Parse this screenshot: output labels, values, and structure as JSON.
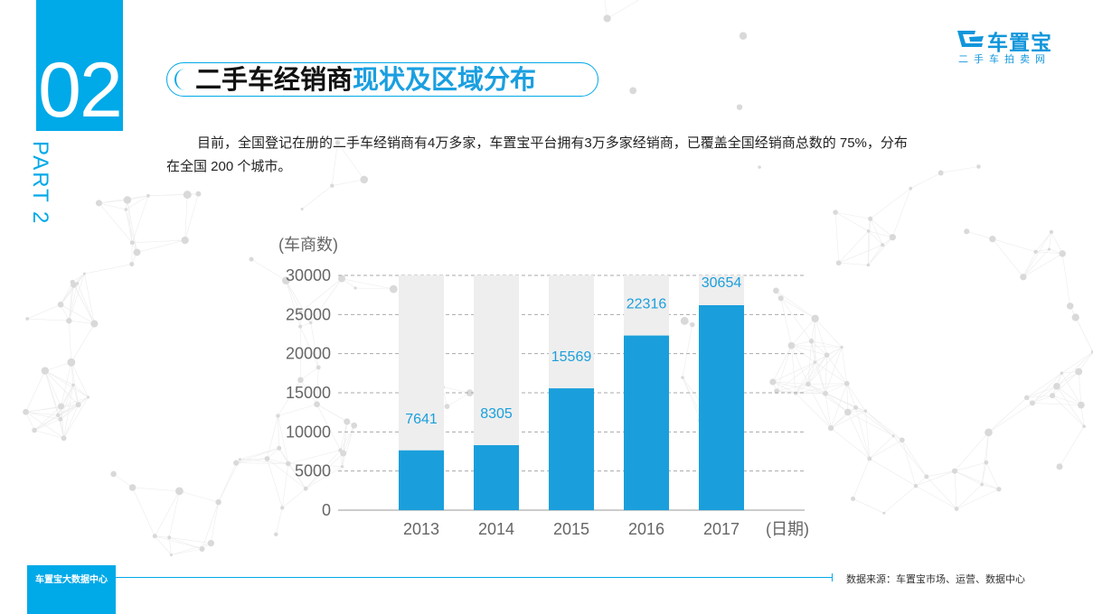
{
  "section": {
    "number": "02",
    "part_label": "PART 2"
  },
  "title": {
    "main": "二手车经销商",
    "accent": "现状及区域分布"
  },
  "logo": {
    "name": "车置宝",
    "subtitle": "二手车拍卖网"
  },
  "paragraph": "目前，全国登记在册的二手车经销商有4万多家，车置宝平台拥有3万多家经销商，已覆盖全国经销商总数的 75%，分布在全国 200 个城市。",
  "colors": {
    "accent": "#00a9e8",
    "bar": "#1a9fdc",
    "bar_background": "#eeeeee"
  },
  "chart_data": {
    "type": "bar",
    "categories": [
      "2013",
      "2014",
      "2015",
      "2016",
      "2017"
    ],
    "values": [
      7641,
      8305,
      15569,
      22316,
      30654
    ],
    "ylim": [
      0,
      30000
    ],
    "yticks": [
      0,
      5000,
      10000,
      15000,
      20000,
      25000,
      30000
    ],
    "ylabel": "(车商数)",
    "xlabel": "(日期)",
    "grid": "horizontal-dashed",
    "legend": "none"
  },
  "footer": {
    "tag": "车置宝大数据中心",
    "source": "数据来源：车置宝市场、运营、数据中心"
  }
}
